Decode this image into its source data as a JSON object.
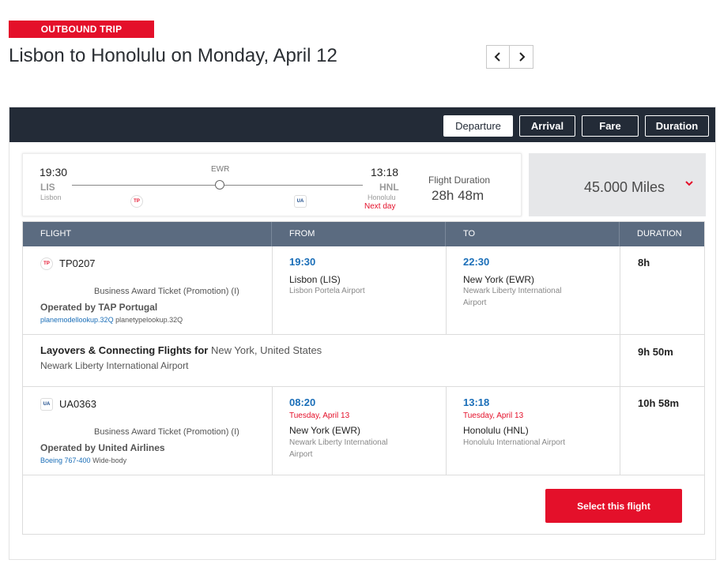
{
  "header": {
    "badge": "OUTBOUND TRIP",
    "title": "Lisbon to Honolulu on Monday, April 12",
    "prev_icon": "chevron-left-icon",
    "next_icon": "chevron-right-icon"
  },
  "sort": {
    "options": [
      "Departure",
      "Arrival",
      "Fare",
      "Duration"
    ],
    "active": "Departure"
  },
  "summary": {
    "dep_time": "19:30",
    "dep_code": "LIS",
    "dep_city": "Lisbon",
    "stop_code": "EWR",
    "arr_time": "13:18",
    "arr_code": "HNL",
    "arr_city": "Honolulu",
    "arr_note": "Next day",
    "duration_label": "Flight Duration",
    "duration_value": "28h 48m",
    "miles": "45.000 Miles"
  },
  "table": {
    "headers": [
      "FLIGHT",
      "FROM",
      "TO",
      "DURATION"
    ],
    "segment1": {
      "flight": "TP0207",
      "ticket": "Business Award Ticket (Promotion) (I)",
      "operated": "Operated by TAP Portugal",
      "aircraft_link": "planemodellookup.32Q",
      "aircraft_type": "planetypelookup.32Q",
      "from_time": "19:30",
      "from_city": "Lisbon (LIS)",
      "from_airport": "Lisbon Portela Airport",
      "to_time": "22:30",
      "to_city": "New York (EWR)",
      "to_airport_1": "Newark Liberty International",
      "to_airport_2": "Airport",
      "duration": "8h"
    },
    "layover": {
      "title_bold": "Layovers & Connecting Flights for",
      "title_place": "New York, United States",
      "airport": "Newark Liberty International Airport",
      "duration": "9h 50m"
    },
    "segment2": {
      "flight": "UA0363",
      "ticket": "Business Award Ticket (Promotion) (I)",
      "operated": "Operated by United Airlines",
      "aircraft_link": "Boeing 767-400",
      "aircraft_type": "Wide-body",
      "from_time": "08:20",
      "from_date": "Tuesday, April 13",
      "from_city": "New York (EWR)",
      "from_airport_1": "Newark Liberty International",
      "from_airport_2": "Airport",
      "to_time": "13:18",
      "to_date": "Tuesday, April 13",
      "to_city": "Honolulu (HNL)",
      "to_airport": "Honolulu International Airport",
      "duration": "10h 58m"
    }
  },
  "select_button": "Select this flight",
  "colors": {
    "brand_red": "#e4102a",
    "bar_dark": "#232b37",
    "table_header": "#5b6b80",
    "link_blue": "#1a6eb8"
  }
}
